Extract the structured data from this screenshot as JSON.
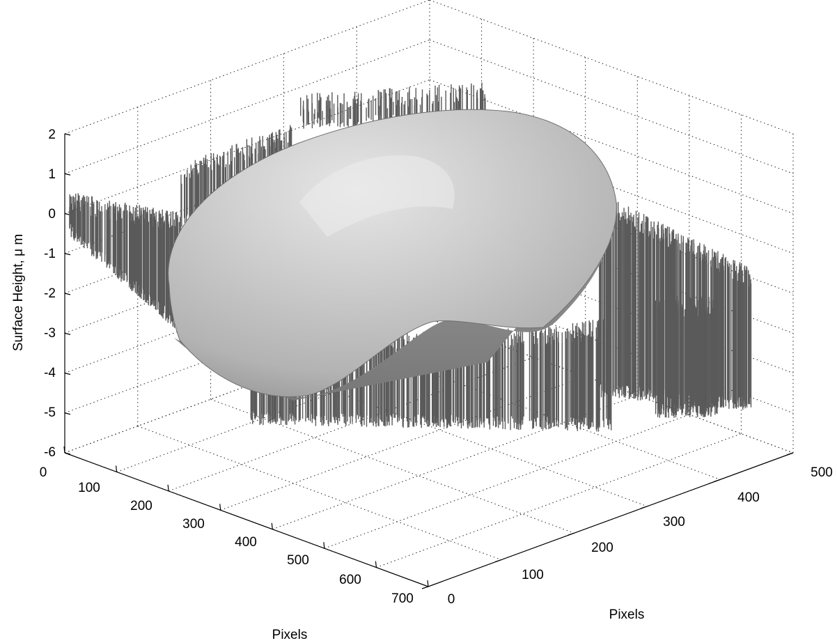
{
  "chart_data": {
    "type": "surface",
    "title": "",
    "xlabel": "Pixels",
    "ylabel": "Pixels",
    "zlabel": "Surface Height, μ m",
    "xlim": [
      0,
      700
    ],
    "ylim": [
      0,
      500
    ],
    "zlim": [
      -6,
      2
    ],
    "xticks": [
      "0",
      "100",
      "200",
      "300",
      "400",
      "500",
      "600",
      "700"
    ],
    "yticks": [
      "0",
      "100",
      "200",
      "300",
      "400",
      "500"
    ],
    "zticks": [
      "2",
      "1",
      "0",
      "-1",
      "-2",
      "-3",
      "-4",
      "-5",
      "-6"
    ],
    "grid": true,
    "colormap": "gray",
    "surface": {
      "shape": "dome",
      "peak_height": 1.5,
      "rim_height": -3.5,
      "surrounding_height_range": [
        -5.5,
        -2
      ]
    }
  }
}
